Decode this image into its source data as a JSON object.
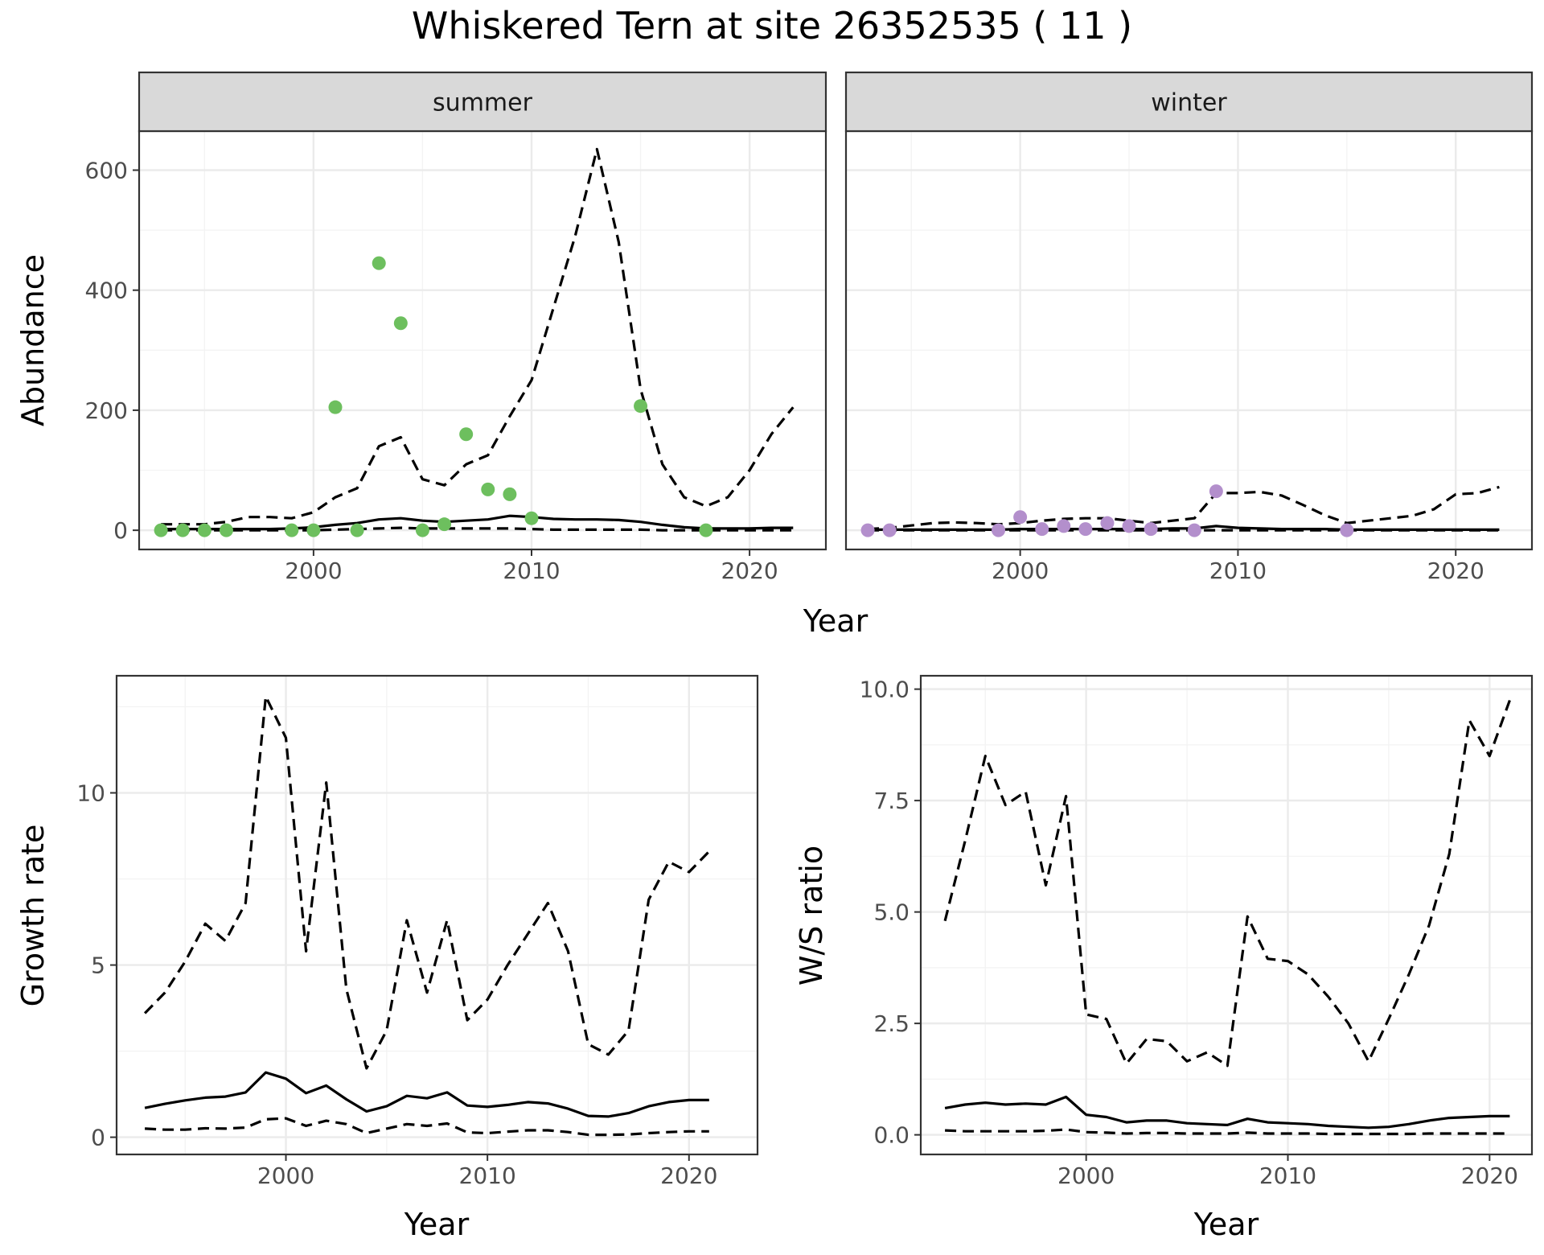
{
  "title": "Whiskered Tern at site 26352535 ( 11 )",
  "chart_data": [
    {
      "type": "line",
      "panel": "summer",
      "strip_label": "summer",
      "xlabel": "Year",
      "ylabel": "Abundance",
      "xlim": [
        1992,
        2023.5
      ],
      "ylim": [
        -32,
        665
      ],
      "x_ticks": [
        2000,
        2010,
        2020
      ],
      "y_ticks": [
        0,
        200,
        400,
        600
      ],
      "grid": true,
      "point_color": "#6dbf5e",
      "points": {
        "x": [
          1993,
          1994,
          1995,
          1996,
          1999,
          2000,
          2001,
          2002,
          2003,
          2004,
          2005,
          2006,
          2007,
          2008,
          2009,
          2010,
          2015,
          2018
        ],
        "y": [
          0,
          0,
          0,
          0,
          0,
          0,
          205,
          0,
          445,
          345,
          0,
          10,
          160,
          68,
          60,
          20,
          207,
          0
        ]
      },
      "series": [
        {
          "style": "solid",
          "x": [
            1993,
            1994,
            1995,
            1996,
            1997,
            1998,
            1999,
            2000,
            2001,
            2002,
            2003,
            2004,
            2005,
            2006,
            2007,
            2008,
            2009,
            2010,
            2011,
            2012,
            2013,
            2014,
            2015,
            2016,
            2017,
            2018,
            2019,
            2020,
            2021,
            2022
          ],
          "y": [
            2,
            2,
            2,
            2,
            2,
            2,
            3,
            5,
            9,
            12,
            18,
            20,
            16,
            14,
            16,
            18,
            24,
            22,
            19,
            18,
            18,
            17,
            14,
            9,
            5,
            3,
            3,
            3,
            4,
            4
          ]
        },
        {
          "style": "dashed",
          "x": [
            1993,
            1994,
            1995,
            1996,
            1997,
            1998,
            1999,
            2000,
            2001,
            2002,
            2003,
            2004,
            2005,
            2006,
            2007,
            2008,
            2009,
            2010,
            2011,
            2012,
            2013,
            2014,
            2015,
            2016,
            2017,
            2018,
            2019,
            2020,
            2021,
            2022
          ],
          "y": [
            10,
            10,
            10,
            14,
            22,
            22,
            20,
            30,
            55,
            70,
            140,
            155,
            85,
            75,
            110,
            125,
            190,
            250,
            370,
            490,
            635,
            480,
            235,
            110,
            55,
            40,
            55,
            100,
            160,
            205
          ]
        },
        {
          "style": "dashed",
          "x": [
            1993,
            1994,
            1995,
            1996,
            1997,
            1998,
            1999,
            2000,
            2001,
            2002,
            2003,
            2004,
            2005,
            2006,
            2007,
            2008,
            2009,
            2010,
            2011,
            2012,
            2013,
            2014,
            2015,
            2016,
            2017,
            2018,
            2019,
            2020,
            2021,
            2022
          ],
          "y": [
            0,
            0,
            0,
            0,
            0,
            0,
            0,
            0,
            1,
            2,
            3,
            4,
            3,
            3,
            3,
            3,
            3,
            2,
            1,
            1,
            1,
            1,
            1,
            0,
            0,
            0,
            0,
            0,
            0,
            0
          ]
        }
      ]
    },
    {
      "type": "line",
      "panel": "winter",
      "strip_label": "winter",
      "xlabel": "Year",
      "ylabel": "",
      "xlim": [
        1992,
        2023.5
      ],
      "ylim": [
        -32,
        665
      ],
      "x_ticks": [
        2000,
        2010,
        2020
      ],
      "y_ticks": [
        0,
        200,
        400,
        600
      ],
      "grid": true,
      "point_color": "#b38fcc",
      "points": {
        "x": [
          1993,
          1994,
          1999,
          2000,
          2001,
          2002,
          2003,
          2004,
          2005,
          2006,
          2008,
          2009,
          2015
        ],
        "y": [
          0,
          0,
          0,
          22,
          2,
          7,
          2,
          12,
          7,
          2,
          0,
          65,
          0
        ]
      },
      "series": [
        {
          "style": "solid",
          "x": [
            1993,
            1994,
            1995,
            1996,
            1997,
            1998,
            1999,
            2000,
            2001,
            2002,
            2003,
            2004,
            2005,
            2006,
            2007,
            2008,
            2009,
            2010,
            2011,
            2012,
            2013,
            2014,
            2015,
            2016,
            2017,
            2018,
            2019,
            2020,
            2021,
            2022
          ],
          "y": [
            1,
            1,
            1,
            1,
            1,
            1,
            1,
            2,
            2,
            2,
            2,
            2,
            2,
            2,
            3,
            3,
            7,
            4,
            3,
            2,
            2,
            2,
            1,
            1,
            1,
            1,
            1,
            1,
            1,
            1
          ]
        },
        {
          "style": "dashed",
          "x": [
            1993,
            1994,
            1995,
            1996,
            1997,
            1998,
            1999,
            2000,
            2001,
            2002,
            2003,
            2004,
            2005,
            2006,
            2007,
            2008,
            2009,
            2010,
            2011,
            2012,
            2013,
            2014,
            2015,
            2016,
            2017,
            2018,
            2019,
            2020,
            2021,
            2022
          ],
          "y": [
            2,
            4,
            8,
            12,
            13,
            12,
            10,
            12,
            16,
            19,
            20,
            20,
            16,
            12,
            16,
            20,
            62,
            62,
            64,
            58,
            42,
            25,
            12,
            16,
            20,
            24,
            35,
            60,
            62,
            72
          ]
        },
        {
          "style": "dashed",
          "x": [
            1993,
            1994,
            1995,
            1996,
            1997,
            1998,
            1999,
            2000,
            2001,
            2002,
            2003,
            2004,
            2005,
            2006,
            2007,
            2008,
            2009,
            2010,
            2011,
            2012,
            2013,
            2014,
            2015,
            2016,
            2017,
            2018,
            2019,
            2020,
            2021,
            2022
          ],
          "y": [
            0,
            0,
            0,
            0,
            0,
            0,
            0,
            0,
            0,
            0,
            0,
            0,
            0,
            0,
            0,
            0,
            0,
            0,
            0,
            0,
            0,
            0,
            0,
            0,
            0,
            0,
            0,
            0,
            0,
            0
          ]
        }
      ]
    },
    {
      "type": "line",
      "panel": "growth",
      "xlabel": "Year",
      "ylabel": "Growth rate",
      "xlim": [
        1991.6,
        2023.4
      ],
      "ylim": [
        -0.5,
        13.4
      ],
      "x_ticks": [
        2000,
        2010,
        2020
      ],
      "y_ticks": [
        0,
        5,
        10
      ],
      "grid": true,
      "series": [
        {
          "style": "solid",
          "x": [
            1993,
            1994,
            1995,
            1996,
            1997,
            1998,
            1999,
            2000,
            2001,
            2002,
            2003,
            2004,
            2005,
            2006,
            2007,
            2008,
            2009,
            2010,
            2011,
            2012,
            2013,
            2014,
            2015,
            2016,
            2017,
            2018,
            2019,
            2020,
            2021
          ],
          "y": [
            0.85,
            0.97,
            1.07,
            1.15,
            1.18,
            1.3,
            1.88,
            1.7,
            1.28,
            1.5,
            1.1,
            0.75,
            0.9,
            1.2,
            1.13,
            1.3,
            0.92,
            0.88,
            0.94,
            1.02,
            0.98,
            0.83,
            0.62,
            0.6,
            0.7,
            0.9,
            1.02,
            1.08,
            1.08
          ]
        },
        {
          "style": "dashed",
          "x": [
            1993,
            1994,
            1995,
            1996,
            1997,
            1998,
            1999,
            2000,
            2001,
            2002,
            2003,
            2004,
            2005,
            2006,
            2007,
            2008,
            2009,
            2010,
            2011,
            2012,
            2013,
            2014,
            2015,
            2016,
            2017,
            2018,
            2019,
            2020,
            2021
          ],
          "y": [
            3.6,
            4.2,
            5.1,
            6.2,
            5.7,
            6.8,
            12.8,
            11.6,
            5.4,
            10.3,
            4.3,
            2.0,
            3.1,
            6.3,
            4.2,
            6.3,
            3.4,
            4.0,
            5.0,
            5.9,
            6.8,
            5.4,
            2.7,
            2.4,
            3.1,
            6.9,
            8.0,
            7.7,
            8.3
          ]
        },
        {
          "style": "dashed",
          "x": [
            1993,
            1994,
            1995,
            1996,
            1997,
            1998,
            1999,
            2000,
            2001,
            2002,
            2003,
            2004,
            2005,
            2006,
            2007,
            2008,
            2009,
            2010,
            2011,
            2012,
            2013,
            2014,
            2015,
            2016,
            2017,
            2018,
            2019,
            2020,
            2021
          ],
          "y": [
            0.25,
            0.22,
            0.22,
            0.26,
            0.25,
            0.28,
            0.52,
            0.55,
            0.33,
            0.48,
            0.38,
            0.12,
            0.25,
            0.38,
            0.33,
            0.4,
            0.14,
            0.12,
            0.16,
            0.2,
            0.2,
            0.15,
            0.07,
            0.07,
            0.08,
            0.12,
            0.15,
            0.17,
            0.17
          ]
        }
      ]
    },
    {
      "type": "line",
      "panel": "ratio",
      "xlabel": "Year",
      "ylabel": "W/S ratio",
      "xlim": [
        1991.8,
        2022.1
      ],
      "ylim": [
        -0.44,
        10.3
      ],
      "x_ticks": [
        2000,
        2010,
        2020
      ],
      "y_ticks": [
        0.0,
        2.5,
        5.0,
        7.5,
        10.0
      ],
      "y_tick_labels": [
        "0.0",
        "2.5",
        "5.0",
        "7.5",
        "10.0"
      ],
      "grid": true,
      "series": [
        {
          "style": "solid",
          "x": [
            1993,
            1994,
            1995,
            1996,
            1997,
            1998,
            1999,
            2000,
            2001,
            2002,
            2003,
            2004,
            2005,
            2006,
            2007,
            2008,
            2009,
            2010,
            2011,
            2012,
            2013,
            2014,
            2015,
            2016,
            2017,
            2018,
            2019,
            2020,
            2021
          ],
          "y": [
            0.6,
            0.68,
            0.72,
            0.68,
            0.7,
            0.68,
            0.85,
            0.45,
            0.4,
            0.28,
            0.32,
            0.32,
            0.26,
            0.24,
            0.22,
            0.36,
            0.28,
            0.26,
            0.24,
            0.2,
            0.18,
            0.16,
            0.18,
            0.24,
            0.32,
            0.38,
            0.4,
            0.42,
            0.42
          ]
        },
        {
          "style": "dashed",
          "x": [
            1993,
            1994,
            1995,
            1996,
            1997,
            1998,
            1999,
            2000,
            2001,
            2002,
            2003,
            2004,
            2005,
            2006,
            2007,
            2008,
            2009,
            2010,
            2011,
            2012,
            2013,
            2014,
            2015,
            2016,
            2017,
            2018,
            2019,
            2020,
            2021
          ],
          "y": [
            4.8,
            6.6,
            8.5,
            7.4,
            7.7,
            5.6,
            7.6,
            2.7,
            2.6,
            1.6,
            2.15,
            2.1,
            1.65,
            1.85,
            1.55,
            4.9,
            3.95,
            3.9,
            3.6,
            3.1,
            2.5,
            1.65,
            2.6,
            3.6,
            4.7,
            6.3,
            9.3,
            8.5,
            9.75
          ]
        },
        {
          "style": "dashed",
          "x": [
            1993,
            1994,
            1995,
            1996,
            1997,
            1998,
            1999,
            2000,
            2001,
            2002,
            2003,
            2004,
            2005,
            2006,
            2007,
            2008,
            2009,
            2010,
            2011,
            2012,
            2013,
            2014,
            2015,
            2016,
            2017,
            2018,
            2019,
            2020,
            2021
          ],
          "y": [
            0.1,
            0.08,
            0.08,
            0.08,
            0.08,
            0.09,
            0.12,
            0.06,
            0.05,
            0.03,
            0.04,
            0.04,
            0.03,
            0.03,
            0.03,
            0.05,
            0.03,
            0.03,
            0.03,
            0.02,
            0.02,
            0.02,
            0.02,
            0.02,
            0.03,
            0.03,
            0.03,
            0.03,
            0.03
          ]
        }
      ]
    }
  ]
}
